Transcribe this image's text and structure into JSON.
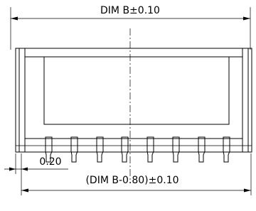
{
  "dimensions": {
    "overall": "DIM B±0.10",
    "offset": "0.20",
    "span": "(DIM B-0.80)±0.10"
  }
}
